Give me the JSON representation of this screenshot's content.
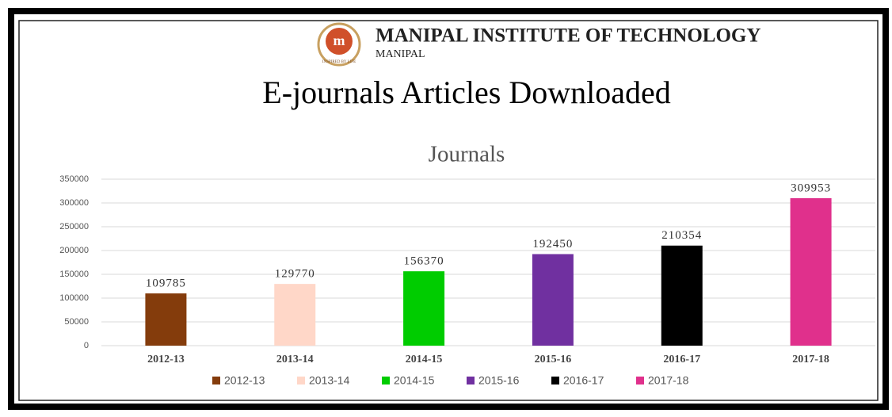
{
  "header": {
    "institute": "MANIPAL INSTITUTE OF TECHNOLOGY",
    "city": "MANIPAL",
    "motto": "INSPIRED BY LIFE",
    "title": "E-journals Articles  Downloaded"
  },
  "chart_data": {
    "type": "bar",
    "title": "Journals",
    "categories": [
      "2012-13",
      "2013-14",
      "2014-15",
      "2015-16",
      "2016-17",
      "2017-18"
    ],
    "values": [
      109785,
      129770,
      156370,
      192450,
      210354,
      309953
    ],
    "colors": [
      "#843c0c",
      "#ffd7c8",
      "#00cc00",
      "#7030a0",
      "#000000",
      "#e0308c"
    ],
    "ylim": [
      0,
      350000
    ],
    "yticks": [
      0,
      50000,
      100000,
      150000,
      200000,
      250000,
      300000,
      350000
    ],
    "grid": true,
    "legend": "bottom"
  }
}
